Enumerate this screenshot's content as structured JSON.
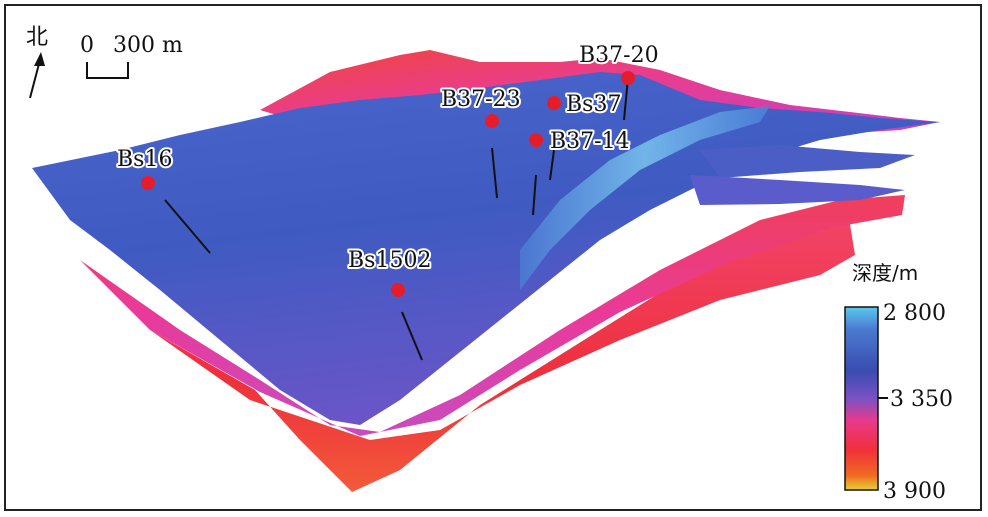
{
  "north": {
    "label": "北"
  },
  "scale_bar": {
    "zero": "0",
    "value": "300 m"
  },
  "wells": [
    {
      "name": "B37-20"
    },
    {
      "name": "B37-23"
    },
    {
      "name": "Bs37"
    },
    {
      "name": "B37-14"
    },
    {
      "name": "Bs16"
    },
    {
      "name": "Bs1502"
    }
  ],
  "legend": {
    "title": "深度/m",
    "ticks": [
      "2 800",
      "3 350",
      "3 900"
    ],
    "colors": [
      "#4fb6e8",
      "#3a56b8",
      "#7b4fc0",
      "#e8308a",
      "#f03a3a",
      "#f06a20",
      "#e8d030"
    ]
  },
  "colors": {
    "marker": "#e51d2a",
    "surface_blue": "#3d5cc4",
    "surface_magenta": "#e13a8e",
    "surface_red": "#ef3b4a"
  }
}
